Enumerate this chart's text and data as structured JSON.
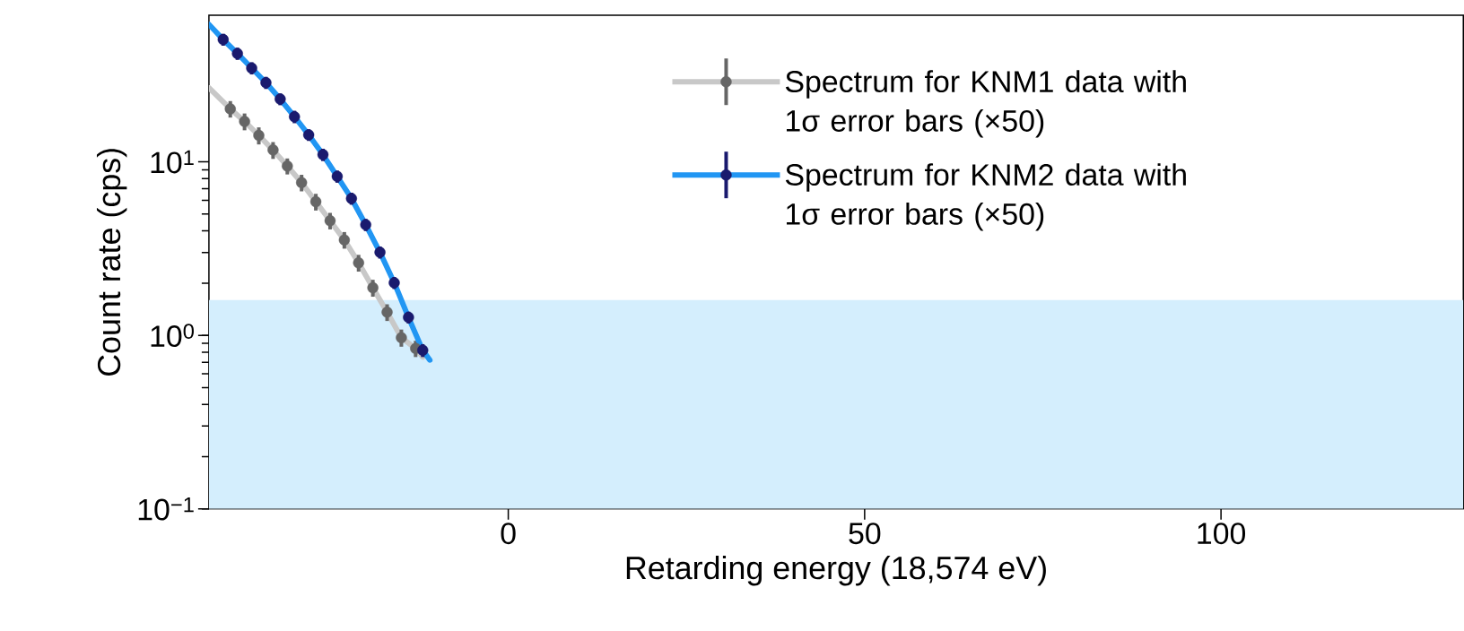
{
  "chart_data": {
    "type": "scatter",
    "xlabel": "Retarding energy (18,574 eV)",
    "ylabel": "Count rate (cps)",
    "log": true,
    "xlim": [
      -42,
      134
    ],
    "xticks": [
      0,
      50,
      100
    ],
    "ylim": [
      0.1,
      70
    ],
    "yticks": [
      {
        "value": 0.1,
        "label": "10$^{−1}$"
      },
      {
        "value": 1,
        "label": "10$^{0}$"
      },
      {
        "value": 10,
        "label": "10$^{1}$"
      }
    ],
    "legend": "top right",
    "marker": "circle",
    "bands": [
      {
        "axis": "y",
        "from": 0.1,
        "to": 1.6,
        "color": "#d4eefd"
      }
    ],
    "series": [
      {
        "type": "line",
        "marker": "none",
        "color": "#c8c8c8",
        "x": [
          -42,
          -39,
          -37,
          -35,
          -33,
          -31,
          -29,
          -27,
          -25,
          -23,
          -21,
          -19,
          -17,
          -15,
          -13,
          -12
        ],
        "values": [
          26.7,
          20.2,
          17.1,
          14.2,
          11.7,
          9.46,
          7.59,
          5.89,
          4.58,
          3.55,
          2.62,
          1.88,
          1.36,
          0.97,
          0.84,
          0.75
        ]
      },
      {
        "name": "Spectrum for KNM1 data with 1σ error bars (×50)",
        "color": "#666666",
        "x": [
          -39,
          -37,
          -35,
          -33,
          -31,
          -29,
          -27,
          -25,
          -23,
          -21,
          -19,
          -17,
          -15,
          -13
        ],
        "values": [
          20.2,
          17.1,
          14.2,
          11.7,
          9.46,
          7.59,
          5.89,
          4.58,
          3.55,
          2.62,
          1.88,
          1.36,
          0.97,
          0.84
        ],
        "errors": [
          2.2,
          1.9,
          1.6,
          1.3,
          1.0,
          0.83,
          0.65,
          0.5,
          0.39,
          0.29,
          0.21,
          0.15,
          0.11,
          0.09
        ]
      },
      {
        "type": "line",
        "marker": "none",
        "color": "#2196f3",
        "x": [
          -42,
          -40,
          -38,
          -36,
          -34,
          -32,
          -30,
          -28,
          -26,
          -24,
          -22,
          -20,
          -18,
          -16,
          -14,
          -12,
          -11
        ],
        "values": [
          62,
          50.7,
          42.1,
          34.7,
          28.6,
          23.0,
          18.2,
          14.3,
          11.0,
          8.24,
          6.15,
          4.34,
          3.01,
          2.01,
          1.27,
          0.82,
          0.72
        ]
      },
      {
        "name": "Spectrum for KNM2 data with 1σ error bars (×50)",
        "color": "#1a1a6e",
        "x": [
          -40,
          -38,
          -36,
          -34,
          -32,
          -30,
          -28,
          -26,
          -24,
          -22,
          -20,
          -18,
          -16,
          -14,
          -12
        ],
        "values": [
          50.7,
          42.1,
          34.7,
          28.6,
          23.0,
          18.2,
          14.3,
          11.0,
          8.24,
          6.15,
          4.34,
          3.01,
          2.01,
          1.27,
          0.82
        ],
        "errors": [
          4.0,
          3.4,
          2.8,
          2.3,
          1.8,
          1.5,
          1.1,
          0.9,
          0.66,
          0.49,
          0.35,
          0.24,
          0.16,
          0.1,
          0.07
        ]
      }
    ]
  }
}
